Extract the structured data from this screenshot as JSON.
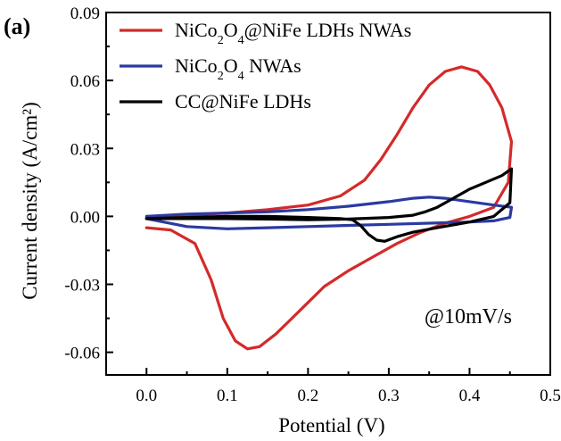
{
  "chart_data": {
    "type": "line",
    "panel_label": "(a)",
    "xlabel": "Potential (V)",
    "ylabel": "Current density (A/cm²)",
    "xlim": [
      -0.05,
      0.5
    ],
    "ylim": [
      -0.07,
      0.09
    ],
    "x_ticks": [
      0.0,
      0.1,
      0.2,
      0.3,
      0.4,
      0.5
    ],
    "x_tick_labels": [
      "0.0",
      "0.1",
      "0.2",
      "0.3",
      "0.4",
      "0.5"
    ],
    "y_ticks": [
      -0.06,
      -0.03,
      0.0,
      0.03,
      0.06,
      0.09
    ],
    "y_tick_labels": [
      "-0.06",
      "-0.03",
      "0.00",
      "0.03",
      "0.06",
      "0.09"
    ],
    "annotation": "@10mV/s",
    "grid": false,
    "legend_position": "top-left",
    "series": [
      {
        "name_parts": [
          [
            "NiCo",
            ""
          ],
          [
            "2",
            "sub"
          ],
          [
            "O",
            ""
          ],
          [
            "4",
            "sub"
          ],
          [
            "@NiFe LDHs NWAs",
            ""
          ]
        ],
        "color": "#d42a2a",
        "points": [
          [
            0.0,
            -0.005
          ],
          [
            0.03,
            -0.006
          ],
          [
            0.06,
            -0.012
          ],
          [
            0.08,
            -0.028
          ],
          [
            0.095,
            -0.045
          ],
          [
            0.11,
            -0.055
          ],
          [
            0.125,
            -0.0585
          ],
          [
            0.14,
            -0.0575
          ],
          [
            0.16,
            -0.052
          ],
          [
            0.18,
            -0.045
          ],
          [
            0.2,
            -0.038
          ],
          [
            0.22,
            -0.031
          ],
          [
            0.25,
            -0.024
          ],
          [
            0.28,
            -0.018
          ],
          [
            0.31,
            -0.012
          ],
          [
            0.34,
            -0.007
          ],
          [
            0.37,
            -0.003
          ],
          [
            0.4,
            0.0
          ],
          [
            0.43,
            0.004
          ],
          [
            0.448,
            0.015
          ],
          [
            0.452,
            0.033
          ],
          [
            0.44,
            0.048
          ],
          [
            0.425,
            0.058
          ],
          [
            0.41,
            0.064
          ],
          [
            0.39,
            0.066
          ],
          [
            0.37,
            0.064
          ],
          [
            0.35,
            0.058
          ],
          [
            0.33,
            0.048
          ],
          [
            0.31,
            0.036
          ],
          [
            0.29,
            0.025
          ],
          [
            0.27,
            0.016
          ],
          [
            0.24,
            0.009
          ],
          [
            0.2,
            0.005
          ],
          [
            0.15,
            0.003
          ],
          [
            0.1,
            0.0015
          ],
          [
            0.05,
            0.0005
          ],
          [
            0.0,
            -0.001
          ]
        ]
      },
      {
        "name_parts": [
          [
            "NiCo",
            ""
          ],
          [
            "2",
            "sub"
          ],
          [
            "O",
            ""
          ],
          [
            "4",
            "sub"
          ],
          [
            " NWAs",
            ""
          ]
        ],
        "color": "#2b3aa0",
        "points": [
          [
            0.0,
            -0.001
          ],
          [
            0.05,
            -0.0045
          ],
          [
            0.1,
            -0.0055
          ],
          [
            0.15,
            -0.005
          ],
          [
            0.2,
            -0.0045
          ],
          [
            0.25,
            -0.004
          ],
          [
            0.3,
            -0.0035
          ],
          [
            0.35,
            -0.003
          ],
          [
            0.4,
            -0.0025
          ],
          [
            0.43,
            -0.002
          ],
          [
            0.45,
            -0.0005
          ],
          [
            0.452,
            0.004
          ],
          [
            0.43,
            0.005
          ],
          [
            0.4,
            0.0065
          ],
          [
            0.37,
            0.008
          ],
          [
            0.35,
            0.0085
          ],
          [
            0.33,
            0.008
          ],
          [
            0.3,
            0.0065
          ],
          [
            0.25,
            0.0045
          ],
          [
            0.2,
            0.003
          ],
          [
            0.15,
            0.002
          ],
          [
            0.1,
            0.0015
          ],
          [
            0.05,
            0.001
          ],
          [
            0.0,
            0.0
          ]
        ]
      },
      {
        "name_parts": [
          [
            "CC@NiFe LDHs",
            ""
          ]
        ],
        "color": "#000000",
        "points": [
          [
            0.0,
            -0.001
          ],
          [
            0.05,
            -0.0005
          ],
          [
            0.1,
            0.0
          ],
          [
            0.15,
            0.0
          ],
          [
            0.2,
            -0.0005
          ],
          [
            0.24,
            -0.001
          ],
          [
            0.255,
            -0.0015
          ],
          [
            0.265,
            -0.004
          ],
          [
            0.275,
            -0.008
          ],
          [
            0.285,
            -0.0105
          ],
          [
            0.295,
            -0.011
          ],
          [
            0.31,
            -0.009
          ],
          [
            0.33,
            -0.007
          ],
          [
            0.36,
            -0.005
          ],
          [
            0.4,
            -0.0025
          ],
          [
            0.43,
            0.0
          ],
          [
            0.45,
            0.006
          ],
          [
            0.452,
            0.021
          ],
          [
            0.44,
            0.018
          ],
          [
            0.42,
            0.015
          ],
          [
            0.4,
            0.012
          ],
          [
            0.38,
            0.008
          ],
          [
            0.36,
            0.004
          ],
          [
            0.345,
            0.002
          ],
          [
            0.33,
            0.0005
          ],
          [
            0.3,
            -0.0005
          ],
          [
            0.25,
            -0.0012
          ],
          [
            0.2,
            -0.0015
          ],
          [
            0.15,
            -0.0012
          ],
          [
            0.1,
            -0.001
          ],
          [
            0.05,
            -0.001
          ],
          [
            0.0,
            -0.001
          ]
        ]
      }
    ]
  }
}
